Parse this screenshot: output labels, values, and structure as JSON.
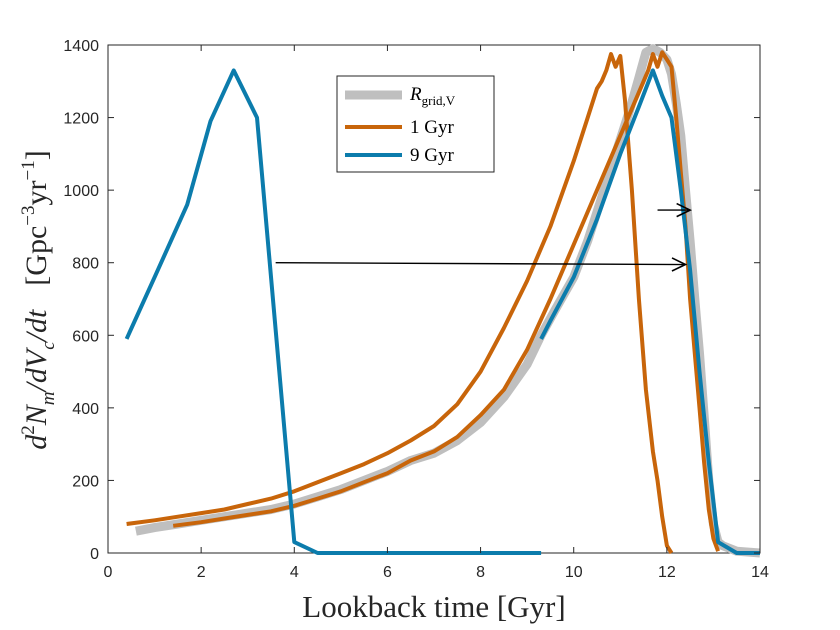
{
  "chart_data": {
    "type": "line",
    "title": "",
    "xlabel": "Lookback time   [Gyr]",
    "ylabel": "d²N_m/dV_c/dt   [Gpc⁻³yr⁻¹]",
    "ylabel_parts": {
      "main": "d",
      "sup1": "2",
      "n": "N",
      "m": "m",
      "slash_dv": "/dV",
      "c": "c",
      "dt": "/dt",
      "unit_open": "[Gpc",
      "unit_exp1": "−3",
      "unit_mid": "yr",
      "unit_exp2": "−1",
      "unit_close": "]"
    },
    "xlim": [
      0,
      14
    ],
    "ylim": [
      0,
      1400
    ],
    "xticks": [
      "0",
      "2",
      "4",
      "6",
      "8",
      "10",
      "12",
      "14"
    ],
    "yticks": [
      "0",
      "200",
      "400",
      "600",
      "800",
      "1000",
      "1200",
      "1400"
    ],
    "grid": false,
    "legend_position": "top-center",
    "legend": [
      {
        "label": "R",
        "sub": "grid,V",
        "color": "#bfbfbf"
      },
      {
        "label": "1 Gyr",
        "color": "#c8650a"
      },
      {
        "label": "9 Gyr",
        "color": "#0c7cac"
      }
    ],
    "series": [
      {
        "name": "R_grid,V",
        "color": "#bfbfbf",
        "x": [
          0.6,
          1.0,
          1.5,
          2.0,
          2.5,
          3.0,
          3.5,
          4.0,
          4.5,
          5.0,
          5.5,
          6.0,
          6.5,
          7.0,
          7.5,
          8.0,
          8.5,
          9.0,
          9.3,
          9.6,
          10.0,
          10.3,
          10.6,
          10.9,
          11.2,
          11.4,
          11.55,
          11.7,
          11.85,
          12.0,
          12.1,
          12.2,
          12.3,
          12.4,
          12.5,
          12.6,
          12.7,
          12.8,
          12.9,
          13.0,
          13.1,
          13.2,
          13.5,
          14.0
        ],
        "y": [
          60,
          70,
          80,
          90,
          100,
          110,
          120,
          135,
          155,
          175,
          200,
          225,
          255,
          275,
          310,
          360,
          430,
          520,
          600,
          670,
          760,
          860,
          980,
          1100,
          1220,
          1310,
          1380,
          1390,
          1380,
          1360,
          1320,
          1240,
          1150,
          1000,
          860,
          700,
          550,
          380,
          200,
          80,
          30,
          20,
          5,
          0
        ]
      },
      {
        "name": "1 Gyr",
        "color": "#c8650a",
        "x": [
          0.4,
          1.0,
          1.5,
          2.0,
          2.5,
          3.0,
          3.5,
          4.0,
          4.5,
          5.0,
          5.5,
          6.0,
          6.5,
          7.0,
          7.5,
          8.0,
          8.5,
          9.0,
          9.5,
          10.0,
          10.3,
          10.5,
          10.6,
          10.7,
          10.8,
          10.9,
          11.0,
          11.1,
          11.25,
          11.4,
          11.55,
          11.7,
          11.8,
          11.9,
          12.0,
          12.1
        ],
        "y": [
          80,
          90,
          100,
          110,
          120,
          135,
          150,
          170,
          195,
          220,
          245,
          275,
          310,
          350,
          410,
          500,
          620,
          750,
          900,
          1080,
          1200,
          1280,
          1300,
          1330,
          1375,
          1340,
          1370,
          1250,
          1000,
          700,
          450,
          280,
          200,
          100,
          20,
          0
        ],
        "x2": [
          1.4,
          2.0,
          2.5,
          3.0,
          3.5,
          4.0,
          4.5,
          5.0,
          5.5,
          6.0,
          6.5,
          7.0,
          7.5,
          8.0,
          8.5,
          9.0,
          9.5,
          10.0,
          10.5,
          11.0,
          11.3,
          11.5,
          11.6,
          11.7,
          11.8,
          11.9,
          12.0,
          12.1,
          12.2,
          12.3,
          12.4,
          12.5,
          12.6,
          12.7,
          12.8,
          12.9,
          13.0,
          13.1
        ],
        "y2": [
          75,
          85,
          95,
          105,
          115,
          130,
          150,
          170,
          195,
          220,
          255,
          280,
          320,
          380,
          450,
          560,
          700,
          850,
          1000,
          1150,
          1240,
          1300,
          1330,
          1375,
          1340,
          1380,
          1360,
          1340,
          1200,
          1050,
          900,
          700,
          550,
          400,
          250,
          120,
          40,
          5
        ]
      },
      {
        "name": "9 Gyr",
        "color": "#0c7cac",
        "x": [
          0.4,
          1.0,
          1.7,
          2.2,
          2.7,
          3.2,
          4.0,
          4.5,
          9.0,
          9.3
        ],
        "y": [
          590,
          760,
          960,
          1190,
          1330,
          1200,
          30,
          0,
          0,
          0
        ],
        "x2": [
          9.3,
          9.5,
          10.0,
          10.5,
          11.0,
          11.4,
          11.7,
          11.9,
          12.1,
          12.3,
          12.5,
          12.7,
          12.9,
          13.1,
          13.5,
          14.0
        ],
        "y2": [
          590,
          640,
          760,
          920,
          1100,
          1230,
          1330,
          1260,
          1200,
          1000,
          780,
          500,
          250,
          30,
          0,
          0
        ]
      }
    ],
    "annotations": [
      {
        "type": "arrow",
        "from": [
          3.6,
          800
        ],
        "to": [
          12.4,
          795
        ]
      },
      {
        "type": "arrow",
        "from": [
          11.8,
          945
        ],
        "to": [
          12.5,
          945
        ]
      }
    ]
  }
}
